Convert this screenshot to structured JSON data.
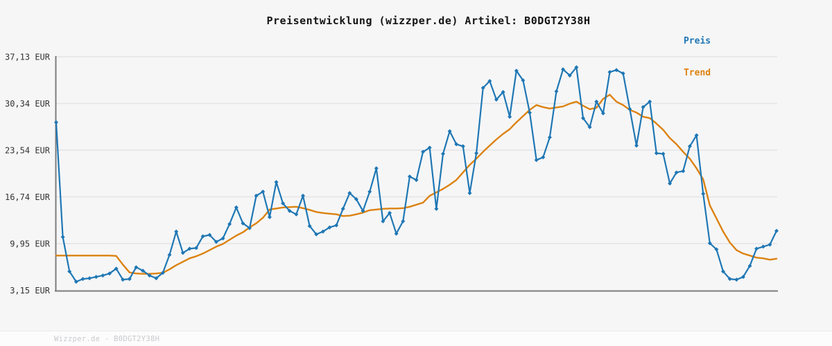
{
  "title": "Preisentwicklung (wizzper.de) Artikel: B0DGT2Y38H",
  "footer": "Wizzper.de - B0DGT2Y38H",
  "legend": [
    {
      "label": "Preis",
      "color": "#1f77b4"
    },
    {
      "label": "Trend",
      "color": "#dc820f"
    }
  ],
  "colors": {
    "price_line": "#1f77b4",
    "trend_line": "#dc820f",
    "gridline": "#e4e4e5",
    "axis": "#7c7c7c",
    "tick_label": "#333333",
    "background": "#f6f6f7"
  },
  "chart_data": {
    "type": "line",
    "title": "Preisentwicklung (wizzper.de) Artikel: B0DGT2Y38H",
    "xlabel": "",
    "ylabel": "EUR",
    "ylim": [
      3.15,
      37.13
    ],
    "grid": "horizontal only",
    "legend_position": "top-right, colored text labels",
    "yticks": [
      {
        "label": "37,13 EUR",
        "value": 37.13
      },
      {
        "label": "30,34 EUR",
        "value": 30.34
      },
      {
        "label": "23,54 EUR",
        "value": 23.54
      },
      {
        "label": "16,74 EUR",
        "value": 16.74
      },
      {
        "label": "9,95 EUR",
        "value": 9.95
      },
      {
        "label": "3,15 EUR",
        "value": 3.15
      }
    ],
    "x_axis_note": "no x tick labels visible; 109 evenly spaced time points",
    "series": [
      {
        "name": "Preis",
        "color": "#1f77b4",
        "marker": "diamond",
        "values": [
          27.6,
          10.9,
          5.9,
          4.4,
          4.8,
          4.9,
          5.1,
          5.3,
          5.6,
          6.3,
          4.7,
          4.8,
          6.5,
          6.0,
          5.3,
          4.9,
          5.7,
          8.3,
          11.7,
          8.6,
          9.2,
          9.3,
          11.0,
          11.2,
          10.2,
          10.7,
          12.8,
          15.2,
          12.9,
          12.2,
          16.9,
          17.5,
          13.8,
          18.9,
          15.8,
          14.7,
          14.2,
          16.9,
          12.5,
          11.3,
          11.7,
          12.3,
          12.6,
          15.0,
          17.3,
          16.4,
          14.7,
          17.5,
          20.9,
          13.2,
          14.4,
          11.4,
          13.2,
          19.7,
          19.2,
          23.3,
          23.9,
          15.0,
          23.0,
          26.3,
          24.4,
          24.1,
          17.3,
          23.1,
          32.6,
          33.6,
          30.9,
          32.0,
          28.4,
          35.1,
          33.7,
          29.0,
          22.1,
          22.5,
          25.4,
          32.1,
          35.3,
          34.4,
          35.6,
          28.2,
          26.9,
          30.6,
          28.9,
          34.9,
          35.2,
          34.7,
          29.5,
          24.2,
          29.8,
          30.6,
          23.1,
          23.0,
          18.7,
          20.3,
          20.5,
          24.1,
          25.7,
          17.2,
          10.0,
          9.1,
          5.9,
          4.8,
          4.7,
          5.1,
          6.7,
          9.2,
          9.5,
          9.8,
          11.8
        ]
      },
      {
        "name": "Trend",
        "color": "#dc820f",
        "marker": "none",
        "values": [
          8.2,
          8.2,
          8.2,
          8.2,
          8.2,
          8.2,
          8.2,
          8.2,
          8.2,
          8.15,
          6.9,
          5.75,
          5.6,
          5.55,
          5.55,
          5.6,
          5.7,
          6.2,
          6.8,
          7.3,
          7.8,
          8.1,
          8.5,
          9.0,
          9.5,
          9.9,
          10.5,
          11.1,
          11.6,
          12.3,
          12.9,
          13.7,
          14.9,
          15.05,
          15.2,
          15.25,
          15.3,
          15.1,
          14.85,
          14.55,
          14.4,
          14.3,
          14.2,
          13.95,
          14.0,
          14.2,
          14.45,
          14.8,
          14.9,
          15.0,
          15.05,
          15.05,
          15.1,
          15.3,
          15.6,
          15.9,
          16.9,
          17.4,
          17.9,
          18.5,
          19.2,
          20.3,
          21.4,
          22.3,
          23.3,
          24.2,
          25.1,
          25.9,
          26.6,
          27.6,
          28.5,
          29.4,
          30.1,
          29.8,
          29.6,
          29.75,
          29.9,
          30.3,
          30.6,
          30.0,
          29.5,
          29.7,
          31.0,
          31.6,
          30.6,
          30.1,
          29.4,
          29.0,
          28.4,
          28.2,
          27.4,
          26.5,
          25.3,
          24.4,
          23.3,
          22.3,
          20.9,
          19.3,
          15.5,
          13.6,
          11.7,
          10.1,
          9.0,
          8.5,
          8.2,
          7.9,
          7.8,
          7.6,
          7.75
        ]
      }
    ]
  }
}
